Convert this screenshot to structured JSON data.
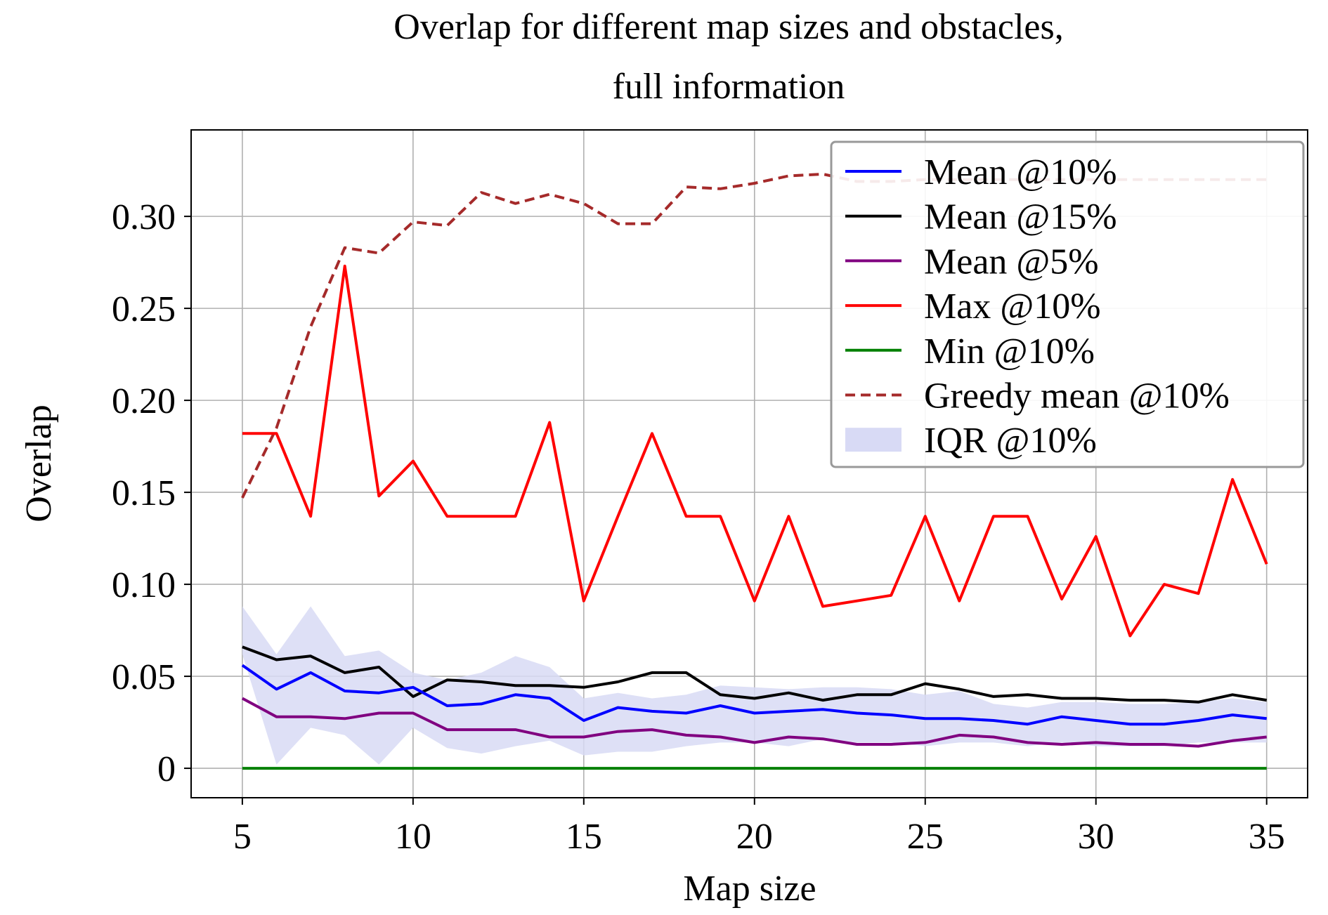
{
  "chart_data": {
    "type": "line",
    "title": "Overlap for different map sizes and obstacles,",
    "subtitle": "full information",
    "xlabel": "Map size",
    "ylabel": "Overlap",
    "xlim": [
      3.5,
      36.2
    ],
    "ylim": [
      -0.016,
      0.347
    ],
    "xticks": [
      5,
      10,
      15,
      20,
      25,
      30,
      35
    ],
    "yticks": [
      0,
      0.05,
      0.1,
      0.15,
      0.2,
      0.25,
      0.3
    ],
    "ytick_labels": [
      "0",
      "0.05",
      "0.10",
      "0.15",
      "0.20",
      "0.25",
      "0.30"
    ],
    "grid": true,
    "legend_position": "top-right",
    "x": [
      5,
      6,
      7,
      8,
      9,
      10,
      11,
      12,
      13,
      14,
      15,
      16,
      17,
      18,
      19,
      20,
      21,
      22,
      23,
      24,
      25,
      26,
      27,
      28,
      29,
      30,
      31,
      32,
      33,
      34,
      35
    ],
    "series": [
      {
        "name": "Mean @10%",
        "color": "#0000ff",
        "style": "solid",
        "values": [
          0.056,
          0.043,
          0.052,
          0.042,
          0.041,
          0.044,
          0.034,
          0.035,
          0.04,
          0.038,
          0.026,
          0.033,
          0.031,
          0.03,
          0.034,
          0.03,
          0.031,
          0.032,
          0.03,
          0.029,
          0.027,
          0.027,
          0.026,
          0.024,
          0.028,
          0.026,
          0.024,
          0.024,
          0.026,
          0.029,
          0.027
        ]
      },
      {
        "name": "Mean @15%",
        "color": "#000000",
        "style": "solid",
        "values": [
          0.066,
          0.059,
          0.061,
          0.052,
          0.055,
          0.039,
          0.048,
          0.047,
          0.045,
          0.045,
          0.044,
          0.047,
          0.052,
          0.052,
          0.04,
          0.038,
          0.041,
          0.037,
          0.04,
          0.04,
          0.046,
          0.043,
          0.039,
          0.04,
          0.038,
          0.038,
          0.037,
          0.037,
          0.036,
          0.04,
          0.037
        ]
      },
      {
        "name": "Mean @5%",
        "color": "#800080",
        "style": "solid",
        "values": [
          0.038,
          0.028,
          0.028,
          0.027,
          0.03,
          0.03,
          0.021,
          0.021,
          0.021,
          0.017,
          0.017,
          0.02,
          0.021,
          0.018,
          0.017,
          0.014,
          0.017,
          0.016,
          0.013,
          0.013,
          0.014,
          0.018,
          0.017,
          0.014,
          0.013,
          0.014,
          0.013,
          0.013,
          0.012,
          0.015,
          0.017
        ]
      },
      {
        "name": "Max @10%",
        "color": "#ff0000",
        "style": "solid",
        "values": [
          0.182,
          0.182,
          0.137,
          0.273,
          0.148,
          0.167,
          0.137,
          0.137,
          0.137,
          0.188,
          0.091,
          0.137,
          0.182,
          0.137,
          0.137,
          0.091,
          0.137,
          0.088,
          0.091,
          0.094,
          0.137,
          0.091,
          0.137,
          0.137,
          0.092,
          0.126,
          0.072,
          0.1,
          0.095,
          0.157,
          0.111
        ]
      },
      {
        "name": "Min @10%",
        "color": "#008000",
        "style": "solid",
        "values": [
          0,
          0,
          0,
          0,
          0,
          0,
          0,
          0,
          0,
          0,
          0,
          0,
          0,
          0,
          0,
          0,
          0,
          0,
          0,
          0,
          0,
          0,
          0,
          0,
          0,
          0,
          0,
          0,
          0,
          0,
          0
        ]
      },
      {
        "name": "Greedy mean @10%",
        "color": "#a52a2a",
        "style": "dashed",
        "values": [
          0.147,
          0.185,
          0.24,
          0.283,
          0.28,
          0.297,
          0.295,
          0.313,
          0.307,
          0.312,
          0.307,
          0.296,
          0.296,
          0.316,
          0.315,
          0.318,
          0.322,
          0.323,
          0.319,
          0.319,
          0.32,
          0.32,
          0.32,
          0.32,
          0.32,
          0.32,
          0.32,
          0.32,
          0.32,
          0.32,
          0.32
        ]
      }
    ],
    "band": {
      "name": "IQR @10%",
      "color": "#d8daf5",
      "lower": [
        0.062,
        0.002,
        0.022,
        0.018,
        0.002,
        0.022,
        0.011,
        0.008,
        0.012,
        0.015,
        0.007,
        0.009,
        0.009,
        0.012,
        0.014,
        0.014,
        0.012,
        0.016,
        0.014,
        0.014,
        0.012,
        0.014,
        0.014,
        0.012,
        0.014,
        0.012,
        0.012,
        0.012,
        0.014,
        0.014,
        0.014
      ],
      "upper": [
        0.088,
        0.062,
        0.088,
        0.061,
        0.064,
        0.052,
        0.048,
        0.052,
        0.061,
        0.055,
        0.038,
        0.041,
        0.038,
        0.04,
        0.045,
        0.044,
        0.043,
        0.044,
        0.044,
        0.043,
        0.04,
        0.042,
        0.035,
        0.033,
        0.036,
        0.036,
        0.035,
        0.035,
        0.036,
        0.038,
        0.036
      ]
    }
  }
}
